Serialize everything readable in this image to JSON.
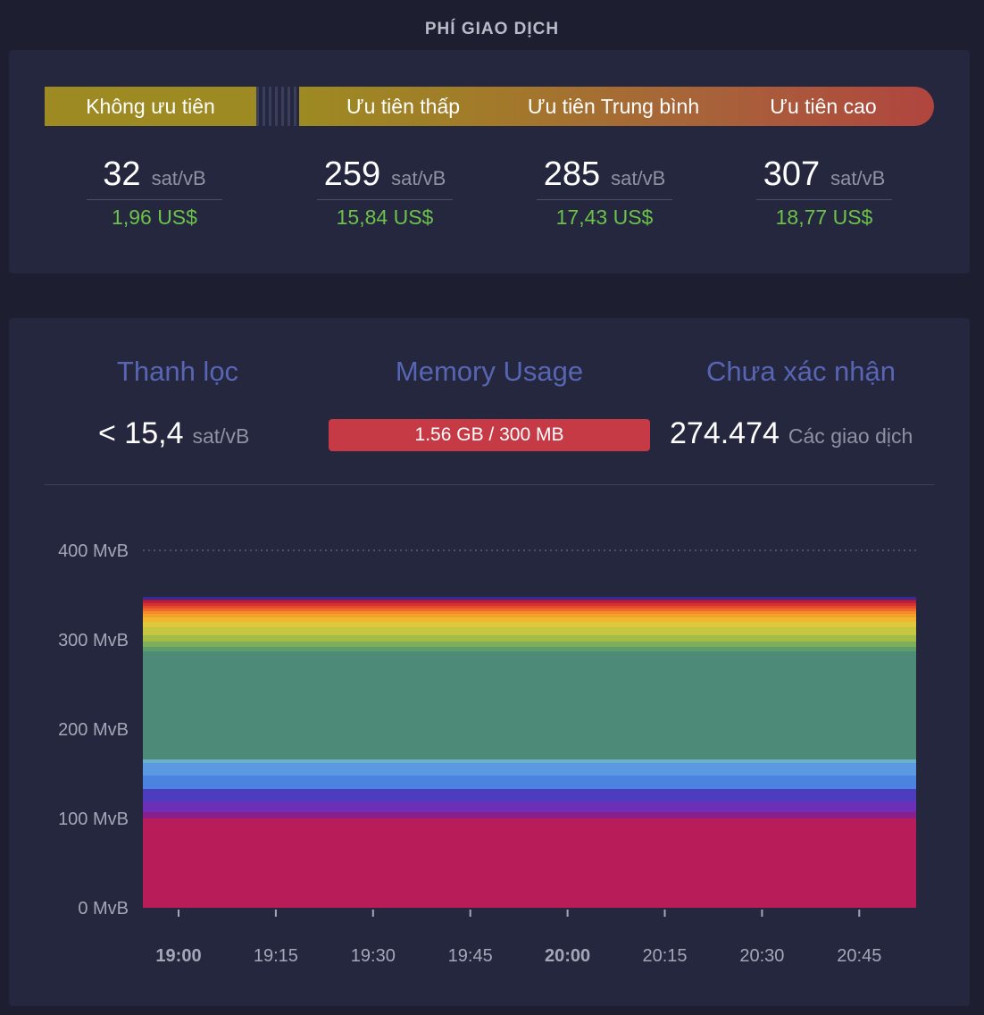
{
  "section_title": "PHÍ GIAO DỊCH",
  "priorities": {
    "none": "Không ưu tiên",
    "low": "Ưu tiên thấp",
    "medium": "Ưu tiên Trung bình",
    "high": "Ưu tiên cao"
  },
  "fees": [
    {
      "value": "32",
      "unit": "sat/vB",
      "usd": "1,96 US$"
    },
    {
      "value": "259",
      "unit": "sat/vB",
      "usd": "15,84 US$"
    },
    {
      "value": "285",
      "unit": "sat/vB",
      "usd": "17,43 US$"
    },
    {
      "value": "307",
      "unit": "sat/vB",
      "usd": "18,77 US$"
    }
  ],
  "mempool": {
    "purge_title": "Thanh lọc",
    "purge_value": "< 15,4",
    "purge_unit": "sat/vB",
    "memory_title": "Memory Usage",
    "memory_value": "1.56 GB / 300 MB",
    "unconfirmed_title": "Chưa xác nhận",
    "unconfirmed_value": "274.474",
    "unconfirmed_unit": "Các giao dịch"
  },
  "colors": {
    "accent_title": "#5865b2",
    "usd_green": "#6cc24a",
    "memory_bar": "#c63a46"
  },
  "chart_data": {
    "type": "area",
    "stacked": true,
    "ylim": [
      0,
      400
    ],
    "y_ticks": [
      "0 MvB",
      "100 MvB",
      "200 MvB",
      "300 MvB",
      "400 MvB"
    ],
    "y_tick_values": [
      0,
      100,
      200,
      300,
      400
    ],
    "x_ticks": [
      "19:00",
      "19:15",
      "19:30",
      "19:45",
      "20:00",
      "20:15",
      "20:30",
      "20:45"
    ],
    "x_ticks_bold": [
      "19:00",
      "20:00"
    ],
    "grid": "dotted line at 400 MvB",
    "layers": [
      {
        "color": "#b81d5a",
        "value": 100
      },
      {
        "color": "#8a1f8a",
        "value": 7
      },
      {
        "color": "#6b2fb8",
        "value": 12
      },
      {
        "color": "#4b3cc0",
        "value": 14
      },
      {
        "color": "#4a83e0",
        "value": 15
      },
      {
        "color": "#5b9ae0",
        "value": 14
      },
      {
        "color": "#6cb0d0",
        "value": 4
      },
      {
        "color": "#4e8a78",
        "value": 121
      },
      {
        "color": "#5e9c6a",
        "value": 5
      },
      {
        "color": "#7fae5a",
        "value": 6
      },
      {
        "color": "#a4bb48",
        "value": 7
      },
      {
        "color": "#c6c640",
        "value": 9
      },
      {
        "color": "#e0c83c",
        "value": 6
      },
      {
        "color": "#f0b830",
        "value": 5
      },
      {
        "color": "#f4a12c",
        "value": 4
      },
      {
        "color": "#f48a2c",
        "value": 3
      },
      {
        "color": "#ee6a2c",
        "value": 3
      },
      {
        "color": "#e64a2c",
        "value": 3
      },
      {
        "color": "#d8302c",
        "value": 3
      },
      {
        "color": "#b82040",
        "value": 3
      },
      {
        "color": "#6a2060",
        "value": 2
      },
      {
        "color": "#2b2fa0",
        "value": 2
      }
    ]
  }
}
